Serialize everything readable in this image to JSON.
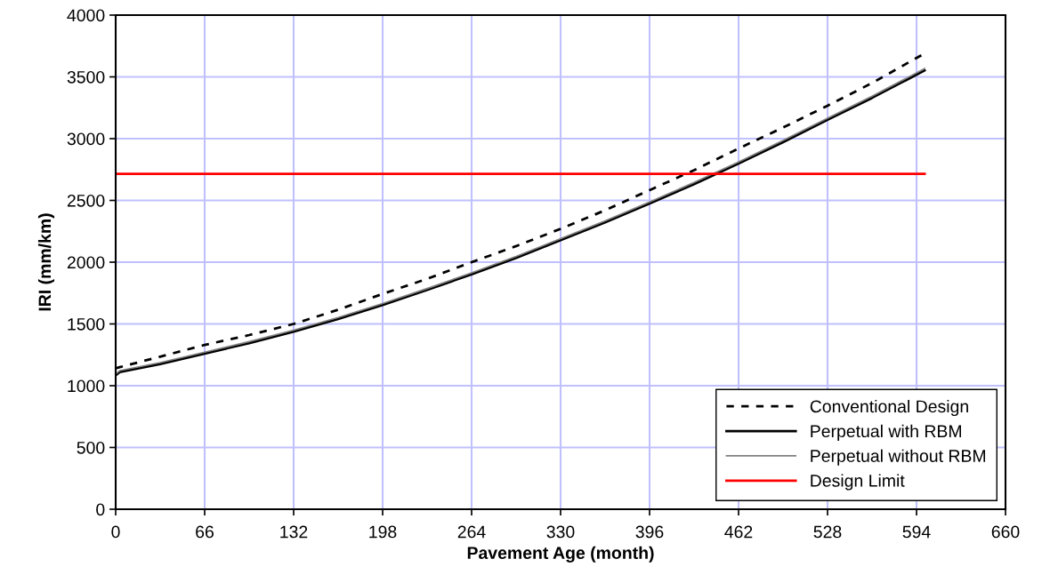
{
  "chart_data": {
    "type": "line",
    "xlabel": "Pavement Age (month)",
    "ylabel": "IRI (mm/km)",
    "xlim": [
      0,
      660
    ],
    "xticks": [
      0,
      66,
      132,
      198,
      264,
      330,
      396,
      462,
      528,
      594,
      660
    ],
    "ylim": [
      0,
      4000
    ],
    "yticks": [
      0,
      500,
      1000,
      1500,
      2000,
      2500,
      3000,
      3500,
      4000
    ],
    "grid": true,
    "legend": "bottom right",
    "marker": "none",
    "x": [
      0,
      3,
      33,
      66,
      99,
      132,
      165,
      198,
      231,
      264,
      297,
      330,
      363,
      396,
      429,
      462,
      495,
      528,
      561,
      600
    ],
    "series": [
      {
        "name": "Conventional Design",
        "color": "#000000",
        "line_style": "dashed",
        "values": [
          1140,
          1150,
          1235,
          1330,
          1410,
          1500,
          1615,
          1743,
          1865,
          2000,
          2130,
          2270,
          2420,
          2583,
          2745,
          2920,
          3090,
          3267,
          3450,
          3690
        ]
      },
      {
        "name": "Perpetual with RBM",
        "color": "#000000",
        "line_style": "solid",
        "values": [
          1085,
          1110,
          1175,
          1260,
          1345,
          1438,
          1540,
          1654,
          1775,
          1902,
          2035,
          2178,
          2322,
          2475,
          2632,
          2798,
          2972,
          3153,
          3330,
          3552
        ]
      },
      {
        "name": "Perpetual without RBM",
        "color": "#808080",
        "line_style": "solid",
        "values": [
          1095,
          1122,
          1187,
          1272,
          1357,
          1450,
          1552,
          1666,
          1787,
          1914,
          2047,
          2190,
          2334,
          2487,
          2645,
          2811,
          2985,
          3166,
          3343,
          3567
        ]
      },
      {
        "name": "Design Limit",
        "color": "#ff0000",
        "line_style": "solid",
        "x": [
          0,
          600
        ],
        "values": [
          2715,
          2715
        ]
      }
    ]
  }
}
